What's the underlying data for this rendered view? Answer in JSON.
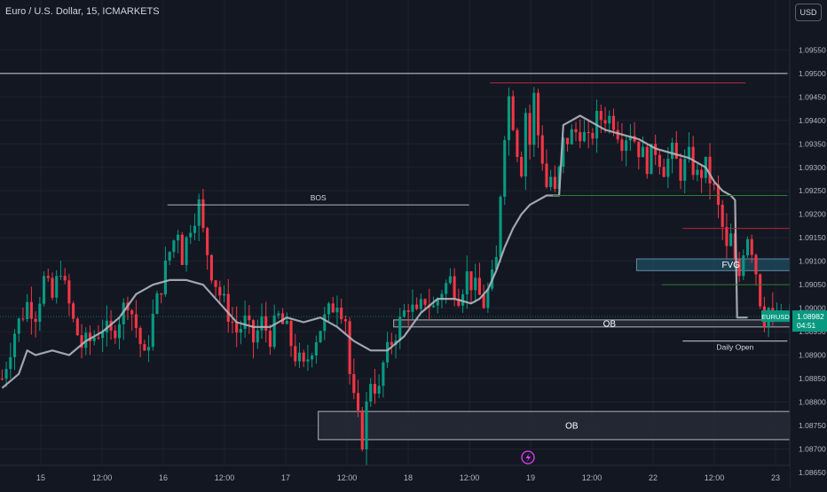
{
  "header": {
    "symbol_title": "Euro / U.S. Dollar, 15, ICMARKETS",
    "currency_button": "USD"
  },
  "chart_data": {
    "type": "candlestick",
    "title": "Euro / U.S. Dollar, 15, ICMARKETS",
    "symbol": "EURUSD",
    "timeframe": "15",
    "broker": "ICMARKETS",
    "y_range": [
      1.0865,
      1.0963
    ],
    "y_ticks": [
      "1.09550",
      "1.09500",
      "1.09450",
      "1.09400",
      "1.09350",
      "1.09300",
      "1.09250",
      "1.09200",
      "1.09150",
      "1.09100",
      "1.09050",
      "1.09000",
      "1.08950",
      "1.08900",
      "1.08850",
      "1.08800",
      "1.08750",
      "1.08700",
      "1.08650"
    ],
    "x_ticks": [
      "15",
      "12:00",
      "16",
      "12:00",
      "17",
      "12:00",
      "18",
      "12:00",
      "19",
      "12:00",
      "22",
      "12:00",
      "23"
    ],
    "last_price": {
      "symbol": "EURUSD",
      "value": "1.08982",
      "countdown": "04:51",
      "color": "#089981"
    },
    "price_path": [
      [
        0,
        1.0885
      ],
      [
        3,
        1.0895
      ],
      [
        6,
        1.0901
      ],
      [
        8,
        1.0899
      ],
      [
        10,
        1.0906
      ],
      [
        12,
        1.0902
      ],
      [
        14,
        1.0909
      ],
      [
        15,
        1.0904
      ],
      [
        17,
        1.0897
      ],
      [
        19,
        1.0892
      ],
      [
        21,
        1.0893
      ],
      [
        24,
        1.0896
      ],
      [
        26,
        1.0894
      ],
      [
        28,
        1.0898
      ],
      [
        30,
        1.0902
      ],
      [
        32,
        1.0896
      ],
      [
        34,
        1.0889
      ],
      [
        36,
        1.0898
      ],
      [
        38,
        1.0905
      ],
      [
        40,
        1.0912
      ],
      [
        42,
        1.0917
      ],
      [
        43,
        1.0911
      ],
      [
        45,
        1.0918
      ],
      [
        47,
        1.0922
      ],
      [
        48,
        1.0916
      ],
      [
        50,
        1.0908
      ],
      [
        52,
        1.0903
      ],
      [
        54,
        1.0899
      ],
      [
        56,
        1.0895
      ],
      [
        58,
        1.0897
      ],
      [
        60,
        1.0893
      ],
      [
        62,
        1.0897
      ],
      [
        64,
        1.0894
      ],
      [
        66,
        1.0898
      ],
      [
        68,
        1.0895
      ],
      [
        70,
        1.089
      ],
      [
        72,
        1.0887
      ],
      [
        74,
        1.0892
      ],
      [
        76,
        1.0896
      ],
      [
        78,
        1.0899
      ],
      [
        80,
        1.0902
      ],
      [
        82,
        1.0898
      ],
      [
        83,
        1.0886
      ],
      [
        84,
        1.088
      ],
      [
        85,
        1.0876
      ],
      [
        86,
        1.0872
      ],
      [
        87,
        1.0879
      ],
      [
        88,
        1.0885
      ],
      [
        90,
        1.0882
      ],
      [
        91,
        1.0888
      ],
      [
        93,
        1.0893
      ],
      [
        95,
        1.0897
      ],
      [
        97,
        1.0901
      ],
      [
        99,
        1.0898
      ],
      [
        101,
        1.0902
      ],
      [
        103,
        1.09
      ],
      [
        105,
        1.0904
      ],
      [
        107,
        1.0906
      ],
      [
        109,
        1.0903
      ],
      [
        111,
        1.0907
      ],
      [
        113,
        1.0904
      ],
      [
        115,
        1.0901
      ],
      [
        117,
        1.0906
      ],
      [
        118,
        1.091
      ],
      [
        119,
        1.0925
      ],
      [
        120,
        1.0938
      ],
      [
        121,
        1.0945
      ],
      [
        122,
        1.094
      ],
      [
        123,
        1.0934
      ],
      [
        124,
        1.093
      ],
      [
        125,
        1.0942
      ],
      [
        126,
        1.0935
      ],
      [
        127,
        1.0945
      ],
      [
        128,
        1.0937
      ],
      [
        129,
        1.0932
      ],
      [
        130,
        1.0926
      ],
      [
        131,
        1.0928
      ],
      [
        132,
        1.0924
      ],
      [
        133,
        1.0929
      ],
      [
        134,
        1.0935
      ],
      [
        136,
        1.0937
      ],
      [
        138,
        1.0938
      ],
      [
        140,
        1.0935
      ],
      [
        142,
        1.094
      ],
      [
        144,
        1.0941
      ],
      [
        146,
        1.094
      ],
      [
        148,
        1.0936
      ],
      [
        150,
        1.0938
      ],
      [
        152,
        1.0934
      ],
      [
        154,
        1.0931
      ],
      [
        156,
        1.0934
      ],
      [
        158,
        1.093
      ],
      [
        160,
        1.0933
      ],
      [
        162,
        1.0929
      ],
      [
        164,
        1.0932
      ],
      [
        166,
        1.0928
      ],
      [
        168,
        1.093
      ],
      [
        170,
        1.0925
      ],
      [
        171,
        1.0921
      ],
      [
        172,
        1.0917
      ],
      [
        173,
        1.0912
      ],
      [
        174,
        1.0915
      ],
      [
        175,
        1.0909
      ],
      [
        176,
        1.0907
      ],
      [
        177,
        1.0913
      ],
      [
        178,
        1.0916
      ],
      [
        179,
        1.0913
      ],
      [
        180,
        1.0908
      ],
      [
        181,
        1.0902
      ],
      [
        182,
        1.0898
      ],
      [
        183,
        1.09
      ],
      [
        184,
        1.0896
      ],
      [
        185,
        1.0899
      ],
      [
        186,
        1.0897
      ],
      [
        187,
        1.0898
      ],
      [
        188,
        1.0898
      ]
    ],
    "moving_average": [
      [
        0,
        1.0883
      ],
      [
        4,
        1.0886
      ],
      [
        6,
        1.0891
      ],
      [
        8,
        1.089
      ],
      [
        12,
        1.0891
      ],
      [
        16,
        1.089
      ],
      [
        20,
        1.0893
      ],
      [
        24,
        1.0895
      ],
      [
        28,
        1.0898
      ],
      [
        32,
        1.0903
      ],
      [
        36,
        1.0905
      ],
      [
        40,
        1.0906
      ],
      [
        44,
        1.0906
      ],
      [
        48,
        1.0905
      ],
      [
        52,
        1.0901
      ],
      [
        56,
        1.0897
      ],
      [
        60,
        1.0896
      ],
      [
        64,
        1.0896
      ],
      [
        68,
        1.0898
      ],
      [
        72,
        1.0897
      ],
      [
        76,
        1.0898
      ],
      [
        80,
        1.0896
      ],
      [
        84,
        1.0893
      ],
      [
        88,
        1.0891
      ],
      [
        92,
        1.0891
      ],
      [
        96,
        1.0894
      ],
      [
        100,
        1.0899
      ],
      [
        104,
        1.0902
      ],
      [
        108,
        1.0902
      ],
      [
        112,
        1.0901
      ],
      [
        114,
        1.0902
      ],
      [
        116,
        1.0904
      ],
      [
        118,
        1.0908
      ],
      [
        120,
        1.0913
      ],
      [
        122,
        1.0917
      ],
      [
        124,
        1.092
      ],
      [
        126,
        1.0922
      ],
      [
        128,
        1.0923
      ],
      [
        130,
        1.0924
      ],
      [
        132,
        1.0924
      ],
      [
        133,
        1.0924
      ],
      [
        134,
        1.0939
      ],
      [
        136,
        1.094
      ],
      [
        138,
        1.0941
      ],
      [
        140,
        1.094
      ],
      [
        144,
        1.0938
      ],
      [
        148,
        1.0937
      ],
      [
        152,
        1.0936
      ],
      [
        156,
        1.0934
      ],
      [
        160,
        1.0933
      ],
      [
        164,
        1.0932
      ],
      [
        168,
        1.093
      ],
      [
        170,
        1.0927
      ],
      [
        172,
        1.0925
      ],
      [
        174,
        1.0924
      ],
      [
        175,
        1.0923
      ],
      [
        175.5,
        1.0898
      ],
      [
        178,
        1.0898
      ]
    ],
    "annotations": [
      {
        "label": "BOS",
        "kind": "line",
        "x1": 40,
        "x2": 112,
        "y": 1.0922,
        "color": "#b2b5be"
      },
      {
        "label": "",
        "kind": "line",
        "x1": 0,
        "x2": 188,
        "y": 1.095,
        "color": "#d1d4dc"
      },
      {
        "label": "",
        "kind": "line",
        "x1": 117,
        "x2": 178,
        "y": 1.0948,
        "color": "#b22833"
      },
      {
        "label": "",
        "kind": "line",
        "x1": 132,
        "x2": 188,
        "y": 1.0924,
        "color": "#2e7d32"
      },
      {
        "label": "",
        "kind": "line",
        "x1": 163,
        "x2": 192,
        "y": 1.0917,
        "color": "#b22833"
      },
      {
        "label": "",
        "kind": "line",
        "x1": 158,
        "x2": 198,
        "y": 1.0905,
        "color": "#2e7d32"
      },
      {
        "label": "Daily Open",
        "kind": "line",
        "x1": 163,
        "x2": 188,
        "y": 1.0893,
        "color": "#d1d4dc"
      },
      {
        "label": "FVG",
        "kind": "zone",
        "x1": 152,
        "y_top": 1.09105,
        "y_bottom": 1.0908,
        "fill": "#1f4e5f",
        "border": "#5d8fa8"
      },
      {
        "label": "OB",
        "kind": "zone",
        "x1": 94,
        "y_top": 1.08975,
        "y_bottom": 1.0896,
        "fill": "#2a2e39",
        "border": "#b2b5be"
      },
      {
        "label": "OB",
        "kind": "zone",
        "x1": 76,
        "y_top": 1.0878,
        "y_bottom": 1.0872,
        "fill": "#2a2e39",
        "border": "#b2b5be"
      }
    ]
  }
}
